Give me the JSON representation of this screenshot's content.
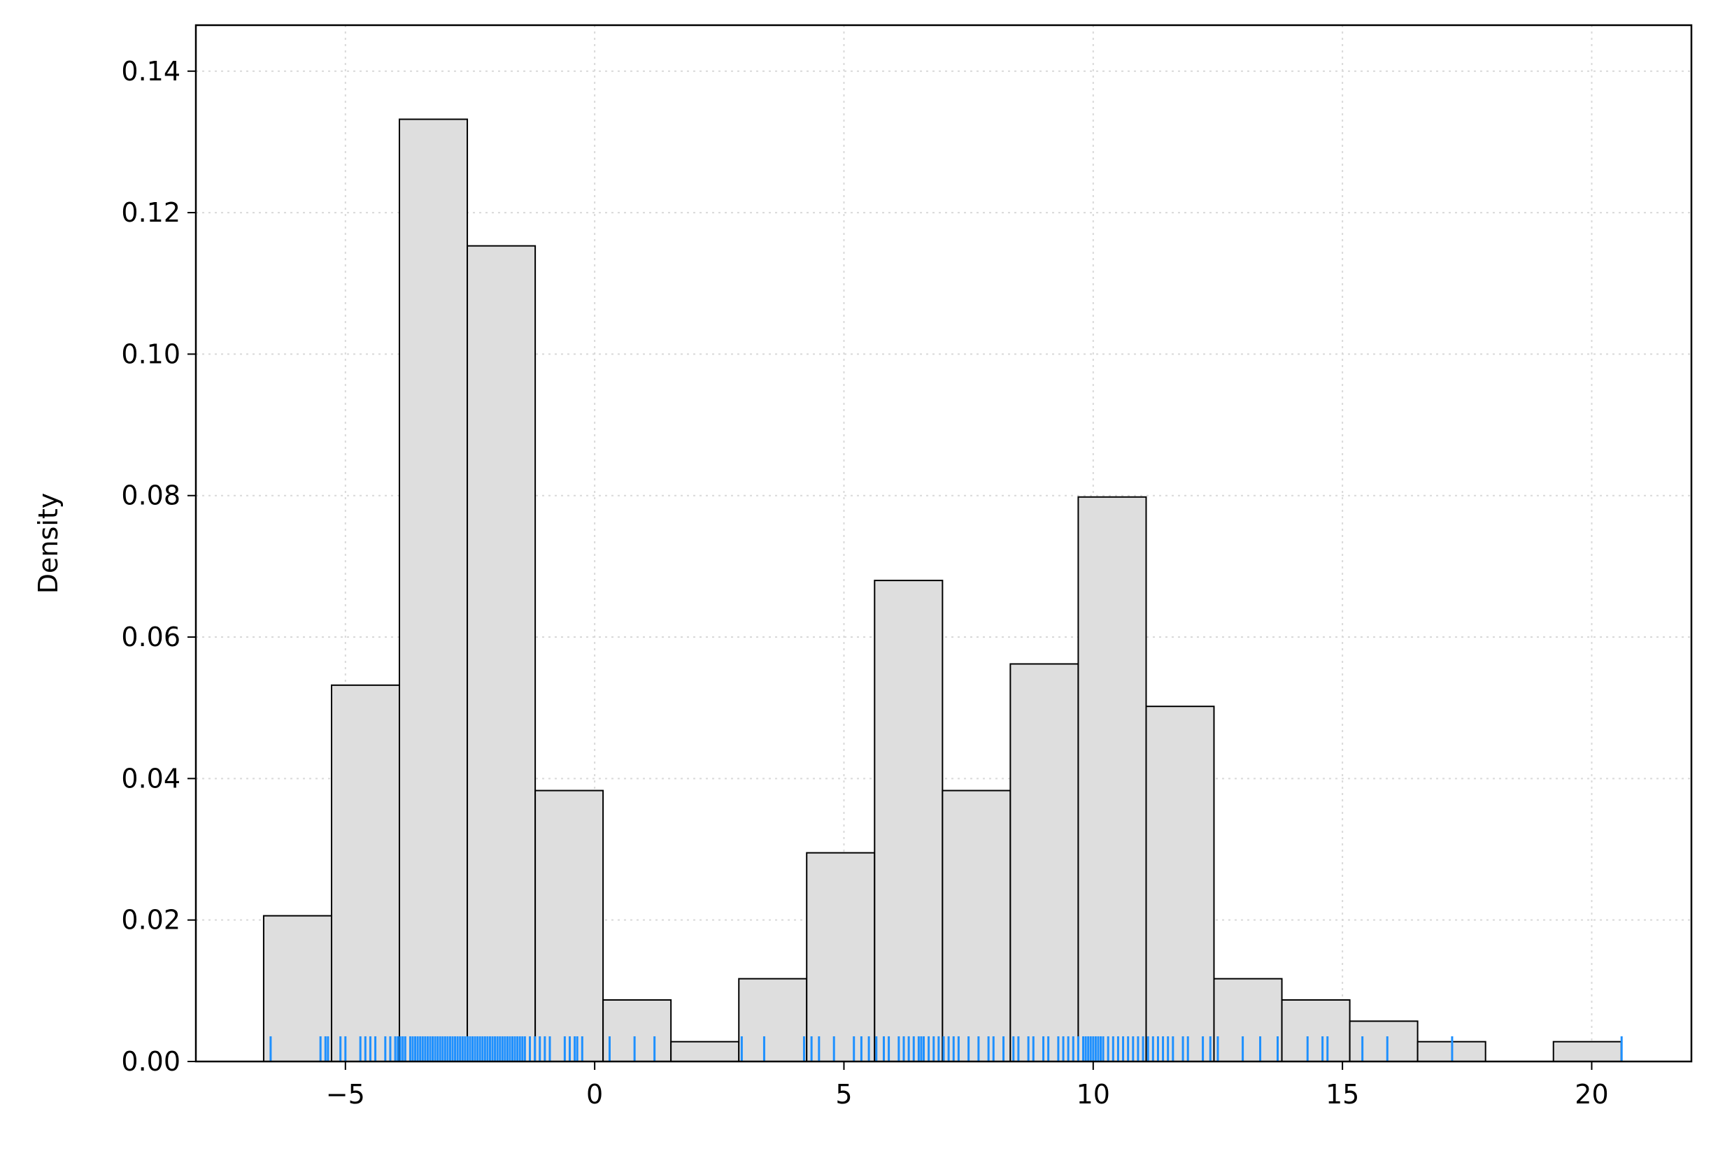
{
  "chart_data": {
    "type": "bar",
    "subtype": "histogram",
    "title": "",
    "xlabel": "",
    "ylabel": "Density",
    "xlim": [
      -8,
      22
    ],
    "ylim": [
      0,
      0.1465
    ],
    "grid": true,
    "x_ticks": [
      -5,
      0,
      5,
      10,
      15,
      20
    ],
    "x_tick_labels": [
      "−5",
      "0",
      "5",
      "10",
      "15",
      "20"
    ],
    "y_ticks": [
      0,
      0.02,
      0.04,
      0.06,
      0.08,
      0.1,
      0.12,
      0.14
    ],
    "y_tick_labels": [
      "0.00",
      "0.02",
      "0.04",
      "0.06",
      "0.08",
      "0.10",
      "0.12",
      "0.14"
    ],
    "bin_edges": [
      -6.64,
      -5.278,
      -3.917,
      -2.555,
      -1.193,
      0.168,
      1.53,
      2.892,
      4.253,
      5.615,
      6.977,
      8.338,
      9.7,
      11.062,
      12.423,
      13.785,
      15.147,
      16.508,
      17.87,
      19.232,
      20.593
    ],
    "values": [
      0.0206,
      0.0532,
      0.1332,
      0.1153,
      0.0383,
      0.0087,
      0.0028,
      0.0117,
      0.0295,
      0.068,
      0.0383,
      0.0562,
      0.0798,
      0.0502,
      0.0117,
      0.0087,
      0.0057,
      0.0028,
      0.0,
      0.0028
    ],
    "rug": [
      -6.5,
      -5.5,
      -5.4,
      -5.35,
      -5.1,
      -5.0,
      -4.7,
      -4.6,
      -4.5,
      -4.4,
      -4.2,
      -4.1,
      -4.0,
      -3.95,
      -3.9,
      -3.85,
      -3.8,
      -3.7,
      -3.65,
      -3.6,
      -3.55,
      -3.5,
      -3.45,
      -3.4,
      -3.35,
      -3.3,
      -3.25,
      -3.2,
      -3.15,
      -3.1,
      -3.05,
      -3.0,
      -2.95,
      -2.9,
      -2.85,
      -2.8,
      -2.75,
      -2.7,
      -2.65,
      -2.6,
      -2.55,
      -2.5,
      -2.45,
      -2.4,
      -2.35,
      -2.3,
      -2.25,
      -2.2,
      -2.15,
      -2.1,
      -2.05,
      -2.0,
      -1.95,
      -1.9,
      -1.85,
      -1.8,
      -1.75,
      -1.7,
      -1.65,
      -1.6,
      -1.55,
      -1.5,
      -1.45,
      -1.4,
      -1.3,
      -1.2,
      -1.1,
      -1.0,
      -0.9,
      -0.6,
      -0.5,
      -0.4,
      -0.35,
      -0.25,
      0.3,
      0.8,
      1.2,
      2.95,
      3.4,
      4.2,
      4.35,
      4.5,
      4.8,
      5.2,
      5.35,
      5.5,
      5.65,
      5.8,
      5.9,
      6.1,
      6.2,
      6.3,
      6.4,
      6.5,
      6.55,
      6.6,
      6.7,
      6.8,
      6.9,
      7.0,
      7.1,
      7.2,
      7.3,
      7.5,
      7.7,
      7.9,
      8.0,
      8.2,
      8.4,
      8.5,
      8.7,
      8.8,
      9.0,
      9.1,
      9.3,
      9.4,
      9.5,
      9.6,
      9.7,
      9.8,
      9.85,
      9.9,
      9.95,
      10.0,
      10.05,
      10.1,
      10.15,
      10.2,
      10.3,
      10.4,
      10.5,
      10.6,
      10.7,
      10.8,
      10.9,
      11.0,
      11.1,
      11.2,
      11.3,
      11.4,
      11.5,
      11.6,
      11.8,
      11.9,
      12.2,
      12.35,
      12.5,
      13.0,
      13.35,
      13.7,
      14.3,
      14.6,
      14.7,
      15.4,
      15.9,
      17.2,
      20.6
    ]
  }
}
